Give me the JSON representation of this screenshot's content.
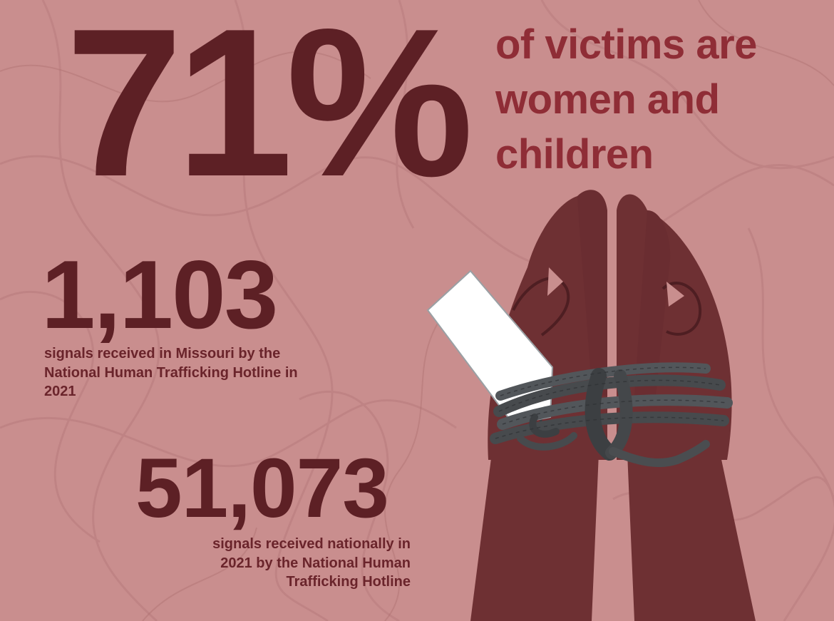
{
  "headline": {
    "percent": "71%",
    "caption": "of victims are women and children"
  },
  "stats": [
    {
      "value": "1,103",
      "caption": "signals received in Missouri by the National Human Trafficking Hotline in 2021"
    },
    {
      "value": "51,073",
      "caption": "signals received nationally in 2021 by the National Human Trafficking Hotline"
    }
  ],
  "colors": {
    "background": "#c98e8e",
    "number_dark": "#5d2025",
    "caption_red": "#8f2d36",
    "skin": "#6e3033",
    "rope": "#4a4d50",
    "tag": "#ffffff"
  },
  "illustration": {
    "icon": "bound-hands-with-tag-icon"
  }
}
